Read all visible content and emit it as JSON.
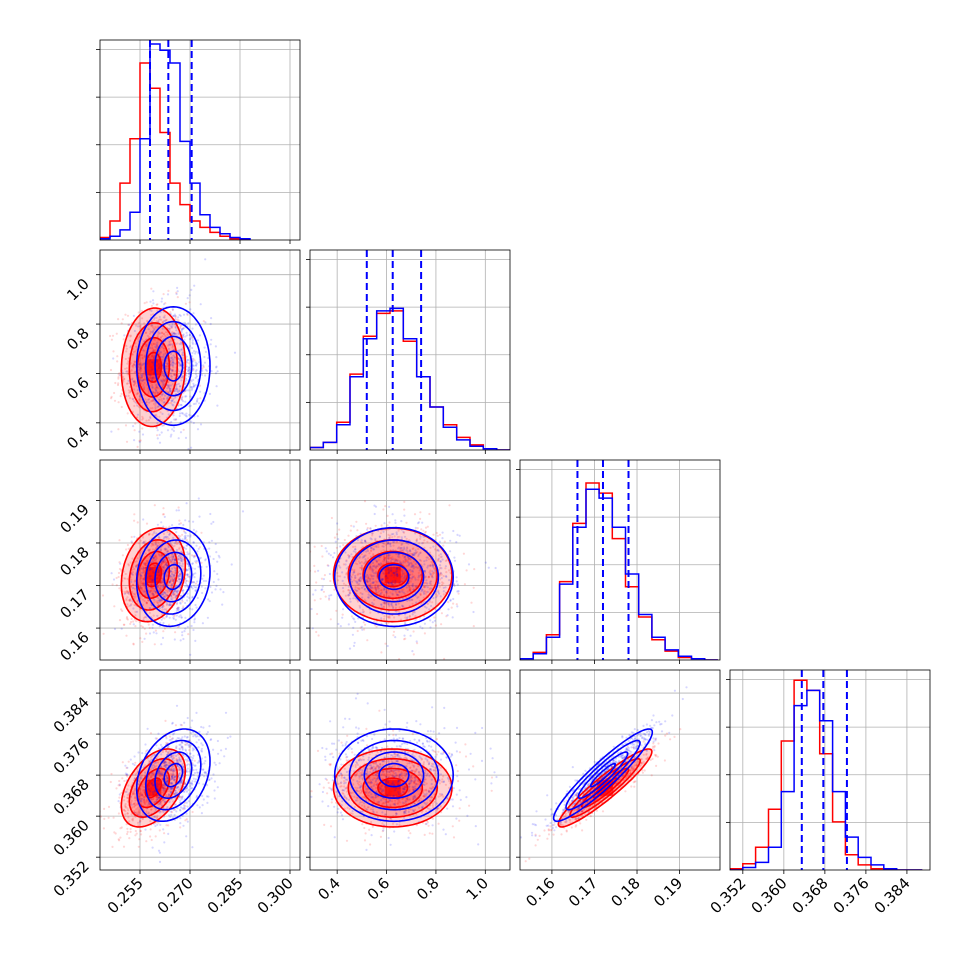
{
  "figure": {
    "type": "corner_plot",
    "colors": {
      "blue": "#0000ff",
      "red": "#ff0000",
      "grid": "#b0b0b0"
    }
  },
  "chart_data": {
    "type": "corner",
    "grid": true,
    "parameters": [
      {
        "range": [
          0.243,
          0.303
        ],
        "ticks": [
          0.255,
          0.27,
          0.285,
          0.3
        ],
        "tick_labels": [
          "0.255",
          "0.270",
          "0.285",
          "0.300"
        ]
      },
      {
        "range": [
          0.29,
          1.1
        ],
        "ticks": [
          0.4,
          0.6,
          0.8,
          1.0
        ],
        "tick_labels": [
          "0.4",
          "0.6",
          "0.8",
          "1.0"
        ]
      },
      {
        "range": [
          0.1525,
          0.1995
        ],
        "ticks": [
          0.16,
          0.17,
          0.18,
          0.19
        ],
        "tick_labels": [
          "0.16",
          "0.17",
          "0.18",
          "0.19"
        ]
      },
      {
        "range": [
          0.3495,
          0.3885
        ],
        "ticks": [
          0.352,
          0.36,
          0.368,
          0.376,
          0.384
        ],
        "tick_labels": [
          "0.352",
          "0.360",
          "0.368",
          "0.376",
          "0.384"
        ]
      }
    ],
    "series": [
      {
        "color": "#0000ff",
        "quantiles": [
          [
            0.258,
            0.2635,
            0.2705
          ],
          [
            0.52,
            0.625,
            0.74
          ],
          [
            0.166,
            0.172,
            0.178
          ],
          [
            0.3635,
            0.3677,
            0.3723
          ]
        ]
      },
      {
        "color": "#ff0000"
      }
    ],
    "hist_ylim": [
      0,
      155
    ],
    "histograms": [
      {
        "edges": [
          0.243,
          0.246,
          0.249,
          0.252,
          0.255,
          0.258,
          0.261,
          0.264,
          0.267,
          0.27,
          0.273,
          0.276,
          0.279,
          0.282,
          0.285,
          0.288
        ],
        "blue": [
          1,
          3,
          8,
          22,
          80,
          155,
          150,
          140,
          78,
          45,
          20,
          10,
          5,
          2,
          1
        ],
        "red": [
          2,
          15,
          45,
          80,
          140,
          120,
          85,
          45,
          28,
          15,
          10,
          6,
          3,
          1,
          0
        ]
      },
      {
        "edges": [
          0.29,
          0.344,
          0.398,
          0.452,
          0.506,
          0.56,
          0.614,
          0.668,
          0.722,
          0.776,
          0.83,
          0.884,
          0.938,
          0.992,
          1.046,
          1.1
        ],
        "blue": [
          2,
          6,
          20,
          58,
          88,
          110,
          112,
          88,
          58,
          34,
          18,
          8,
          3,
          1,
          0
        ],
        "red": [
          2,
          6,
          22,
          60,
          90,
          108,
          110,
          86,
          58,
          34,
          20,
          10,
          4,
          1,
          0
        ]
      },
      {
        "edges": [
          0.1525,
          0.1556,
          0.1587,
          0.1618,
          0.1649,
          0.168,
          0.1711,
          0.1742,
          0.1773,
          0.1804,
          0.1835,
          0.1866,
          0.1897,
          0.1928,
          0.1959,
          0.199
        ],
        "blue": [
          1,
          5,
          18,
          60,
          105,
          135,
          128,
          105,
          68,
          36,
          18,
          8,
          3,
          1,
          0
        ],
        "red": [
          1,
          6,
          20,
          62,
          108,
          140,
          132,
          96,
          58,
          34,
          16,
          7,
          2,
          1,
          0
        ]
      },
      {
        "edges": [
          0.3495,
          0.352,
          0.3545,
          0.357,
          0.3595,
          0.362,
          0.3645,
          0.367,
          0.3695,
          0.372,
          0.3745,
          0.377,
          0.3795,
          0.382,
          0.3845,
          0.387
        ],
        "blue": [
          0,
          2,
          6,
          18,
          62,
          130,
          142,
          118,
          62,
          26,
          10,
          4,
          1,
          0,
          0
        ],
        "red": [
          1,
          5,
          18,
          48,
          102,
          150,
          142,
          92,
          38,
          12,
          4,
          1,
          0,
          0,
          0
        ]
      }
    ],
    "correlations": [
      {
        "pair": [
          1,
          0
        ],
        "blue": 0.0,
        "red": 0.05
      },
      {
        "pair": [
          2,
          0
        ],
        "blue": 0.1,
        "red": 0.2
      },
      {
        "pair": [
          2,
          1
        ],
        "blue": 0.0,
        "red": 0.0
      },
      {
        "pair": [
          3,
          0
        ],
        "blue": 0.3,
        "red": 0.45
      },
      {
        "pair": [
          3,
          1
        ],
        "blue": 0.0,
        "red": 0.0
      },
      {
        "pair": [
          3,
          2
        ],
        "blue": 0.93,
        "red": 0.93
      }
    ],
    "moments": {
      "blue": {
        "mean": [
          0.265,
          0.63,
          0.172,
          0.368
        ],
        "sd": [
          0.0055,
          0.12,
          0.0058,
          0.0045
        ]
      },
      "red": {
        "mean": [
          0.259,
          0.625,
          0.1725,
          0.3655
        ],
        "sd": [
          0.0048,
          0.12,
          0.0055,
          0.0038
        ]
      }
    }
  }
}
